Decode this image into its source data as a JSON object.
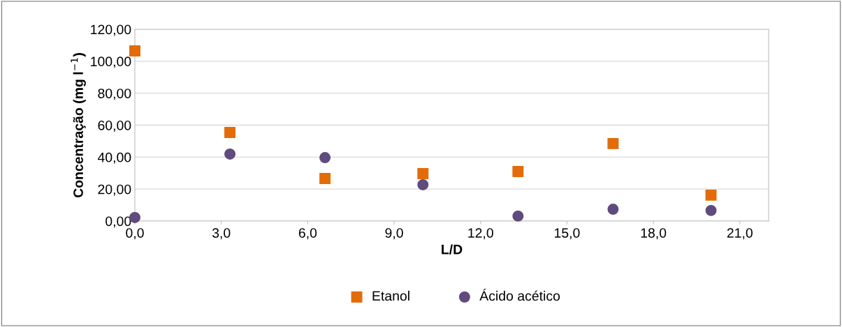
{
  "chart_data": {
    "type": "scatter",
    "xlabel": "L/D",
    "ylabel": "Concentração (mg l$^{−1}$)",
    "series": [
      {
        "name": "Etanol",
        "color": "#e36c09",
        "marker": "square",
        "x": [
          0,
          3.3,
          6.6,
          10,
          13.3,
          16.6,
          20
        ],
        "values": [
          106.5,
          55.4,
          26.6,
          29.7,
          31.0,
          48.5,
          16.2
        ]
      },
      {
        "name": "Ácido acético",
        "color": "#5f4b7d",
        "marker": "circle",
        "x": [
          0,
          3.3,
          6.6,
          10,
          13.3,
          16.6,
          20
        ],
        "values": [
          2.2,
          41.9,
          39.7,
          22.7,
          3.1,
          7.4,
          6.6
        ]
      }
    ],
    "xlim": [
      0,
      22
    ],
    "xticks": [
      {
        "value": 0,
        "label": "0,0"
      },
      {
        "value": 3,
        "label": "3,0"
      },
      {
        "value": 6,
        "label": "6,0"
      },
      {
        "value": 9,
        "label": "9,0"
      },
      {
        "value": 12,
        "label": "12,0"
      },
      {
        "value": 15,
        "label": "15,0"
      },
      {
        "value": 18,
        "label": "18,0"
      },
      {
        "value": 21,
        "label": "21,0"
      }
    ],
    "ylim": [
      0,
      120
    ],
    "yticks": [
      {
        "value": 0,
        "label": "0,00"
      },
      {
        "value": 20,
        "label": "20,00"
      },
      {
        "value": 40,
        "label": "40,00"
      },
      {
        "value": 60,
        "label": "60,00"
      },
      {
        "value": 80,
        "label": "80,00"
      },
      {
        "value": 100,
        "label": "100,00"
      },
      {
        "value": 120,
        "label": "120,00"
      }
    ],
    "grid": "y",
    "legend": "bottom"
  }
}
